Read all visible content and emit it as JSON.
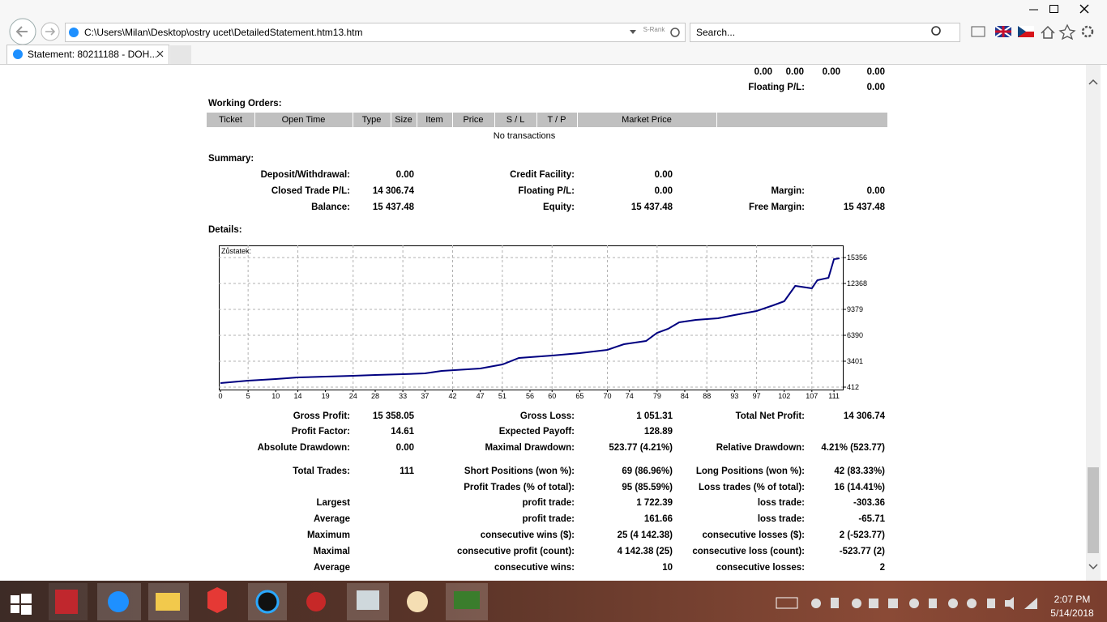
{
  "browser": {
    "address": "C:\\Users\\Milan\\Desktop\\ostry ucet\\DetailedStatement.htm13.htm",
    "rank": "S-Rank",
    "search": "Search...",
    "tab": "Statement: 80211188 - DOH..."
  },
  "top": {
    "values": [
      "0.00",
      "0.00",
      "0.00",
      "0.00"
    ],
    "floating_label": "Floating P/L:",
    "floating_value": "0.00"
  },
  "working_orders": {
    "title": "Working Orders:",
    "headers": [
      "Ticket",
      "Open Time",
      "Type",
      "Size",
      "Item",
      "Price",
      "S / L",
      "T / P",
      "Market Price"
    ],
    "empty": "No transactions"
  },
  "summary": {
    "title": "Summary:",
    "rows": [
      [
        "Deposit/Withdrawal:",
        "0.00",
        "Credit Facility:",
        "0.00",
        null,
        null
      ],
      [
        "Closed Trade P/L:",
        "14 306.74",
        "Floating P/L:",
        "0.00",
        "Margin:",
        "0.00"
      ],
      [
        "Balance:",
        "15 437.48",
        "Equity:",
        "15 437.48",
        "Free Margin:",
        "15 437.48"
      ]
    ]
  },
  "details": {
    "title": "Details:",
    "rows": [
      [
        "Gross Profit:",
        "15 358.05",
        "Gross Loss:",
        "1 051.31",
        "Total Net Profit:",
        "14 306.74"
      ],
      [
        "Profit Factor:",
        "14.61",
        "Expected Payoff:",
        "128.89",
        null,
        null
      ],
      [
        "Absolute Drawdown:",
        "0.00",
        "Maximal Drawdown:",
        "523.77 (4.21%)",
        "Relative Drawdown:",
        "4.21% (523.77)"
      ],
      [
        "Total Trades:",
        "111",
        "Short Positions (won %):",
        "69 (86.96%)",
        "Long Positions (won %):",
        "42 (83.33%)"
      ],
      [
        null,
        null,
        "Profit Trades (% of total):",
        "95 (85.59%)",
        "Loss trades (% of total):",
        "16 (14.41%)"
      ],
      [
        "Largest",
        null,
        "profit trade:",
        "1 722.39",
        "loss trade:",
        "-303.36"
      ],
      [
        "Average",
        null,
        "profit trade:",
        "161.66",
        "loss trade:",
        "-65.71"
      ],
      [
        "Maximum",
        null,
        "consecutive wins ($):",
        "25 (4 142.38)",
        "consecutive losses ($):",
        "2 (-523.77)"
      ],
      [
        "Maximal",
        null,
        "consecutive profit (count):",
        "4 142.38 (25)",
        "consecutive loss (count):",
        "-523.77 (2)"
      ],
      [
        "Average",
        null,
        "consecutive wins:",
        "10",
        "consecutive losses:",
        "2"
      ]
    ]
  },
  "chart_data": {
    "type": "line",
    "x": [
      0,
      5,
      10,
      14,
      19,
      24,
      28,
      33,
      37,
      40,
      47,
      51,
      54,
      60,
      65,
      70,
      73,
      77,
      79,
      81,
      83,
      86,
      90,
      93,
      97,
      100,
      102,
      104,
      107,
      108,
      110,
      111,
      112
    ],
    "series": [
      {
        "name": "Zůstatek:",
        "color": "#000080",
        "values": [
          880,
          1160,
          1346,
          1533,
          1626,
          1720,
          1813,
          1906,
          2000,
          2280,
          2560,
          3027,
          3774,
          4055,
          4335,
          4708,
          5362,
          5736,
          6670,
          7137,
          7884,
          8164,
          8351,
          8725,
          9192,
          9846,
          10313,
          12087,
          11807,
          12741,
          13021,
          15169,
          15262
        ]
      }
    ],
    "xlim": [
      -0.3,
      112.6
    ],
    "ylim": [
      132,
      16757
    ],
    "xticks": [
      0,
      5,
      10,
      14,
      19,
      24,
      28,
      33,
      37,
      42,
      47,
      51,
      56,
      60,
      65,
      70,
      74,
      79,
      84,
      88,
      93,
      97,
      102,
      107,
      111
    ],
    "yticks": [
      412,
      3401,
      6390,
      9379,
      12368,
      15356
    ],
    "grid": true
  },
  "taskbar": {
    "time": "2:07 PM",
    "date": "5/14/2018"
  }
}
